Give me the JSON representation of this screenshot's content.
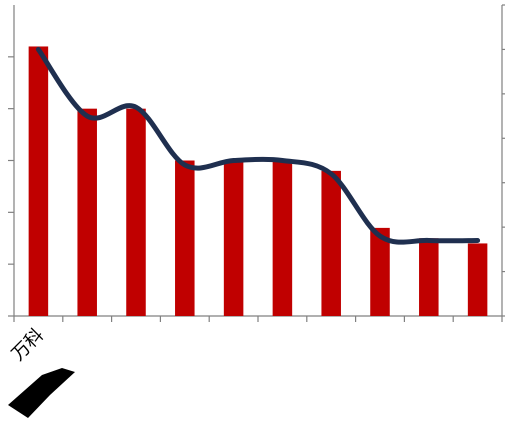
{
  "chart_data": {
    "type": "bar-line",
    "categories": [
      "万科",
      null,
      null,
      null,
      null,
      null,
      null,
      null,
      null,
      null
    ],
    "series": [
      {
        "type": "bar",
        "color": "#c00000",
        "values": [
          5.2,
          4.0,
          4.0,
          3.0,
          3.0,
          3.0,
          2.8,
          1.7,
          1.5,
          1.4
        ]
      },
      {
        "type": "line",
        "axis": "y2",
        "color": "#1f2f4f",
        "values": [
          6.0,
          4.5,
          4.7,
          3.4,
          3.5,
          3.5,
          3.2,
          1.8,
          1.7,
          1.7
        ]
      }
    ],
    "ylim": [
      0,
      6
    ],
    "yticks": [
      0,
      1,
      2,
      3,
      4,
      5
    ],
    "y2lim": [
      0,
      7
    ],
    "y2ticks": [
      0,
      1,
      2,
      3,
      4,
      5,
      6,
      7
    ]
  }
}
